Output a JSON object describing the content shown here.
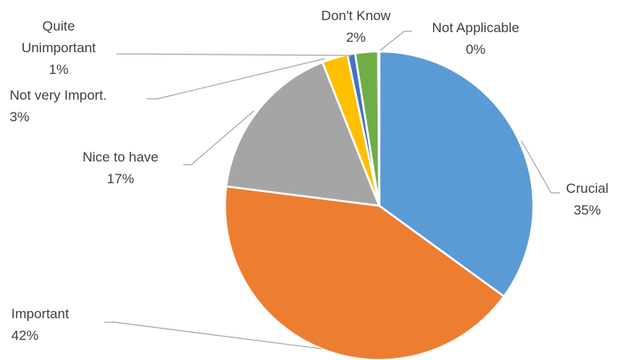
{
  "chart_data": {
    "type": "pie",
    "title": "",
    "start_angle_deg": 0,
    "direction": "clockwise",
    "slices": [
      {
        "name": "Crucial",
        "lines": [
          "Crucial"
        ],
        "value": 35,
        "label": "35%",
        "color": "#5b9bd5"
      },
      {
        "name": "Important",
        "lines": [
          "Important"
        ],
        "value": 42,
        "label": "42%",
        "color": "#ed7d31"
      },
      {
        "name": "Nice to have",
        "lines": [
          "Nice to have"
        ],
        "value": 17,
        "label": "17%",
        "color": "#a5a5a5"
      },
      {
        "name": "Not very Import.",
        "lines": [
          "Not very Import."
        ],
        "value": 2.7,
        "label": "3%",
        "color": "#ffc000"
      },
      {
        "name": "Quite Unimportant",
        "lines": [
          "Quite",
          "Unimportant"
        ],
        "value": 0.8,
        "label": "1%",
        "color": "#4472c4"
      },
      {
        "name": "Don't Know",
        "lines": [
          "Don't Know"
        ],
        "value": 2.4,
        "label": "2%",
        "color": "#70ad47"
      },
      {
        "name": "Not Applicable",
        "lines": [
          "Not Applicable"
        ],
        "value": 0.1,
        "label": "0%",
        "color": "#264478"
      }
    ],
    "legend": "none",
    "data_labels": "outside with leader lines"
  }
}
